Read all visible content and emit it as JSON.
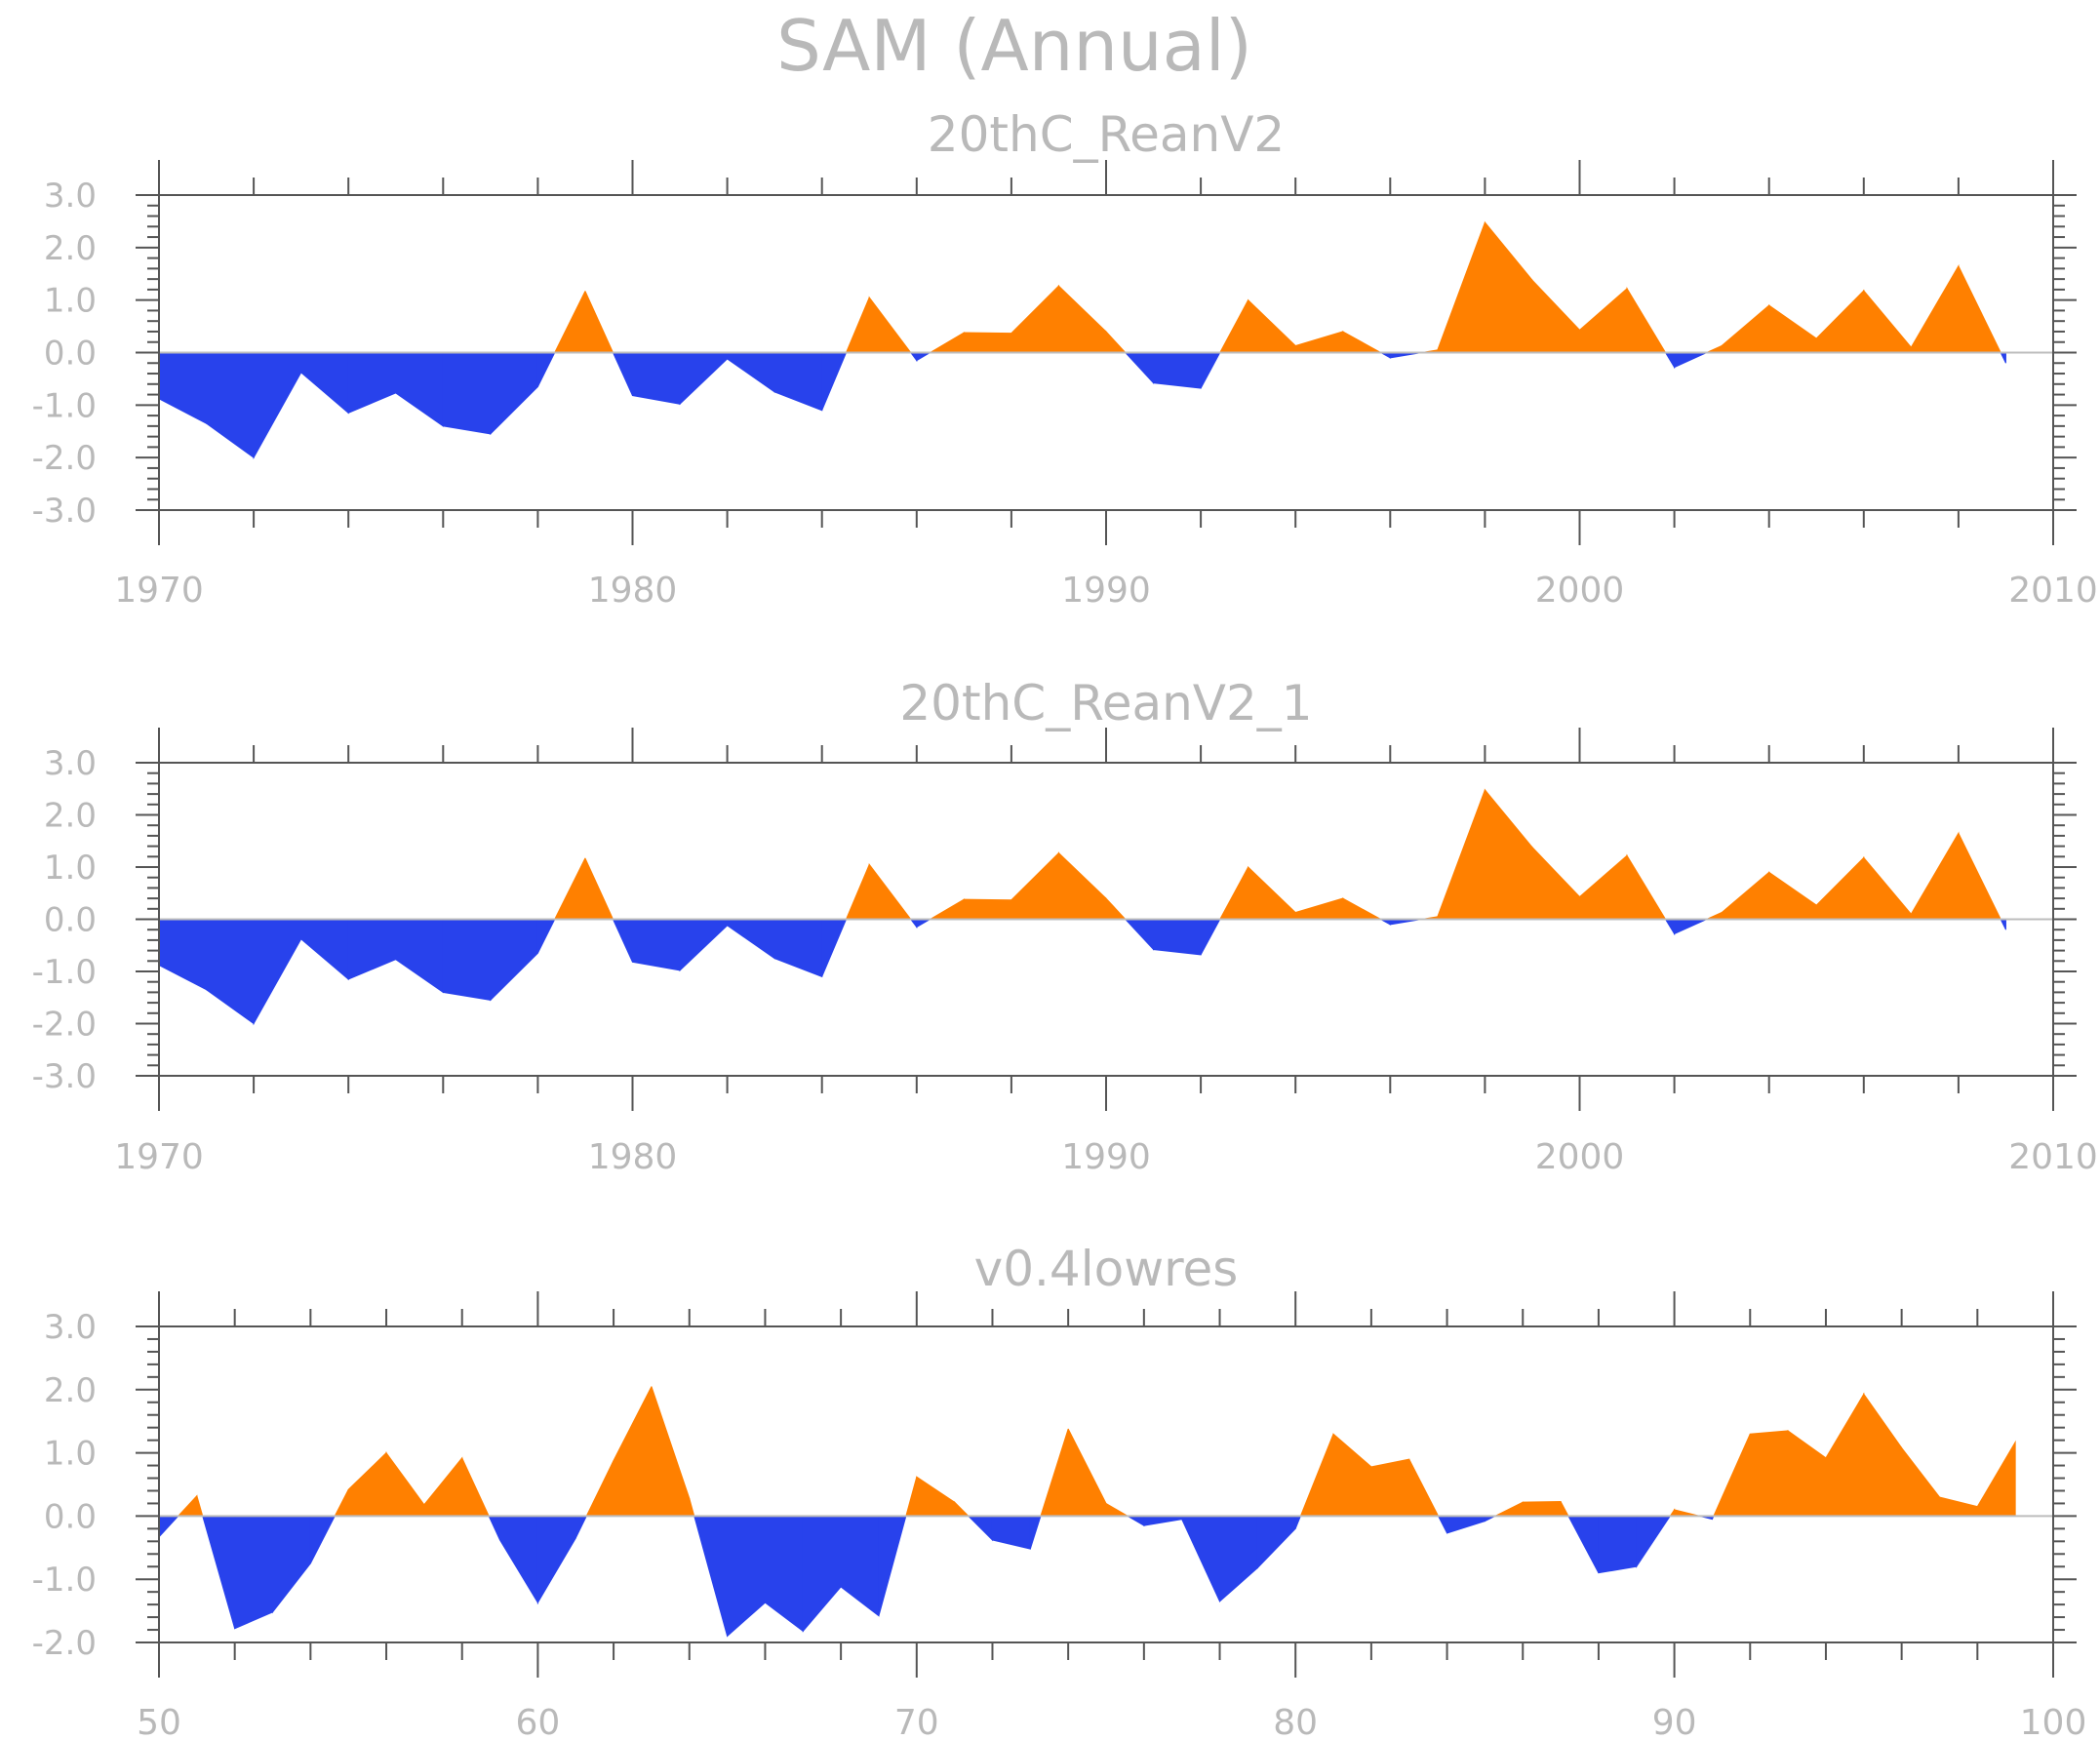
{
  "title": "SAM (Annual)",
  "colors": {
    "positive": "#ff8000",
    "negative": "#2842ec",
    "axis": "#555555",
    "text": "#b9b9b9",
    "zero_line": "#bdbdbd"
  },
  "chart_data": [
    {
      "type": "area",
      "title": "20thC_ReanV2",
      "xlabel": "",
      "ylabel": "",
      "xlim": [
        1970,
        2010
      ],
      "ylim": [
        -3,
        3
      ],
      "x_ticks": [
        1970,
        1980,
        1990,
        2000,
        2010
      ],
      "x_tick_labels": [
        "1970",
        "1980",
        "1990",
        "2000",
        "2010"
      ],
      "y_ticks": [
        3,
        2,
        1,
        0,
        -1,
        -2,
        -3
      ],
      "y_tick_labels": [
        "3.0",
        "2.0",
        "1.0",
        "0.0",
        "-1.0",
        "-2.0",
        "-3.0"
      ],
      "x_start": 1970,
      "values": [
        -0.88,
        -1.35,
        -2.0,
        -0.38,
        -1.15,
        -0.77,
        -1.4,
        -1.55,
        -0.65,
        1.17,
        -0.82,
        -0.98,
        -0.12,
        -0.75,
        -1.1,
        1.05,
        -0.15,
        0.38,
        0.37,
        1.27,
        0.4,
        -0.58,
        -0.68,
        1.0,
        0.13,
        0.4,
        -0.1,
        0.05,
        2.48,
        1.38,
        0.43,
        1.22,
        -0.28,
        0.13,
        0.9,
        0.27,
        1.18,
        0.1,
        1.65,
        -0.2
      ]
    },
    {
      "type": "area",
      "title": "20thC_ReanV2_1",
      "xlabel": "",
      "ylabel": "",
      "xlim": [
        1970,
        2010
      ],
      "ylim": [
        -3,
        3
      ],
      "x_ticks": [
        1970,
        1980,
        1990,
        2000,
        2010
      ],
      "x_tick_labels": [
        "1970",
        "1980",
        "1990",
        "2000",
        "2010"
      ],
      "y_ticks": [
        3,
        2,
        1,
        0,
        -1,
        -2,
        -3
      ],
      "y_tick_labels": [
        "3.0",
        "2.0",
        "1.0",
        "0.0",
        "-1.0",
        "-2.0",
        "-3.0"
      ],
      "x_start": 1970,
      "values": [
        -0.88,
        -1.35,
        -2.0,
        -0.38,
        -1.15,
        -0.77,
        -1.4,
        -1.55,
        -0.65,
        1.17,
        -0.82,
        -0.98,
        -0.12,
        -0.75,
        -1.1,
        1.05,
        -0.15,
        0.38,
        0.37,
        1.27,
        0.4,
        -0.58,
        -0.68,
        1.0,
        0.13,
        0.4,
        -0.1,
        0.05,
        2.48,
        1.38,
        0.43,
        1.22,
        -0.28,
        0.13,
        0.9,
        0.27,
        1.18,
        0.1,
        1.65,
        -0.2
      ]
    },
    {
      "type": "area",
      "title": "v0.4lowres",
      "xlabel": "",
      "ylabel": "",
      "xlim": [
        50,
        100
      ],
      "ylim": [
        -2,
        3
      ],
      "x_ticks": [
        50,
        60,
        70,
        80,
        90,
        100
      ],
      "x_tick_labels": [
        "50",
        "60",
        "70",
        "80",
        "90",
        "100"
      ],
      "y_ticks": [
        3,
        2,
        1,
        0,
        -1,
        -2
      ],
      "y_tick_labels": [
        "3.0",
        "2.0",
        "1.0",
        "0.0",
        "-1.0",
        "-2.0"
      ],
      "x_start": 50,
      "values": [
        -0.33,
        0.32,
        -1.78,
        -1.52,
        -0.75,
        0.42,
        1.0,
        0.18,
        0.92,
        -0.38,
        -1.37,
        -0.35,
        0.88,
        2.05,
        0.28,
        -1.9,
        -1.37,
        -1.82,
        -1.12,
        -1.58,
        0.62,
        0.22,
        -0.38,
        -0.52,
        1.38,
        0.2,
        -0.15,
        -0.05,
        -1.35,
        -0.82,
        -0.2,
        1.3,
        0.78,
        0.9,
        -0.27,
        -0.08,
        0.22,
        0.23,
        -0.9,
        -0.8,
        0.1,
        -0.05,
        1.3,
        1.35,
        0.92,
        1.93,
        1.08,
        0.3,
        0.15,
        1.17
      ]
    }
  ]
}
